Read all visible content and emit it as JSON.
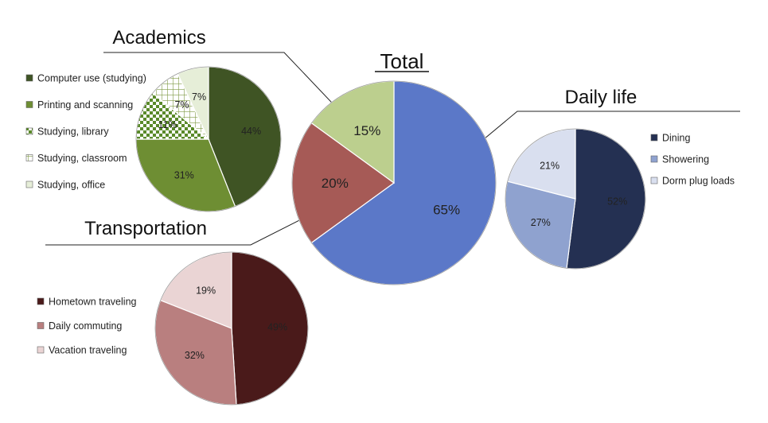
{
  "chart_data": [
    {
      "type": "pie",
      "title": "Total",
      "categories": [
        "Daily life",
        "Transportation",
        "Academics"
      ],
      "values": [
        65,
        20,
        15
      ],
      "labels": [
        "65%",
        "20%",
        "15%"
      ],
      "colors": [
        "#5b78c8",
        "#a65a56",
        "#bccf8e"
      ]
    },
    {
      "type": "pie",
      "title": "Academics",
      "categories": [
        "Computer use (studying)",
        "Printing and scanning",
        "Studying, library",
        "Studying, classroom",
        "Studying, office"
      ],
      "values": [
        44,
        31,
        11,
        7,
        7
      ],
      "labels": [
        "44%",
        "31%",
        "11%",
        "7%",
        "7%"
      ],
      "colors": [
        "#3f5424",
        "#6e8e33",
        "#5a8a2a",
        "#7f9a45",
        "#e6eed8"
      ],
      "patterns": [
        "solid",
        "solid",
        "checker",
        "grid",
        "solid"
      ],
      "legend_position": "left"
    },
    {
      "type": "pie",
      "title": "Daily life",
      "categories": [
        "Dining",
        "Showering",
        "Dorm plug loads"
      ],
      "values": [
        52,
        27,
        21
      ],
      "labels": [
        "52%",
        "27%",
        "21%"
      ],
      "colors": [
        "#243052",
        "#8fa2cf",
        "#d9dfef"
      ],
      "legend_position": "right"
    },
    {
      "type": "pie",
      "title": "Transportation",
      "categories": [
        "Hometown traveling",
        "Daily commuting",
        "Vacation traveling"
      ],
      "values": [
        49,
        32,
        19
      ],
      "labels": [
        "49%",
        "32%",
        "19%"
      ],
      "colors": [
        "#4a1a1a",
        "#b97f7f",
        "#ead4d4"
      ],
      "legend_position": "left"
    }
  ]
}
